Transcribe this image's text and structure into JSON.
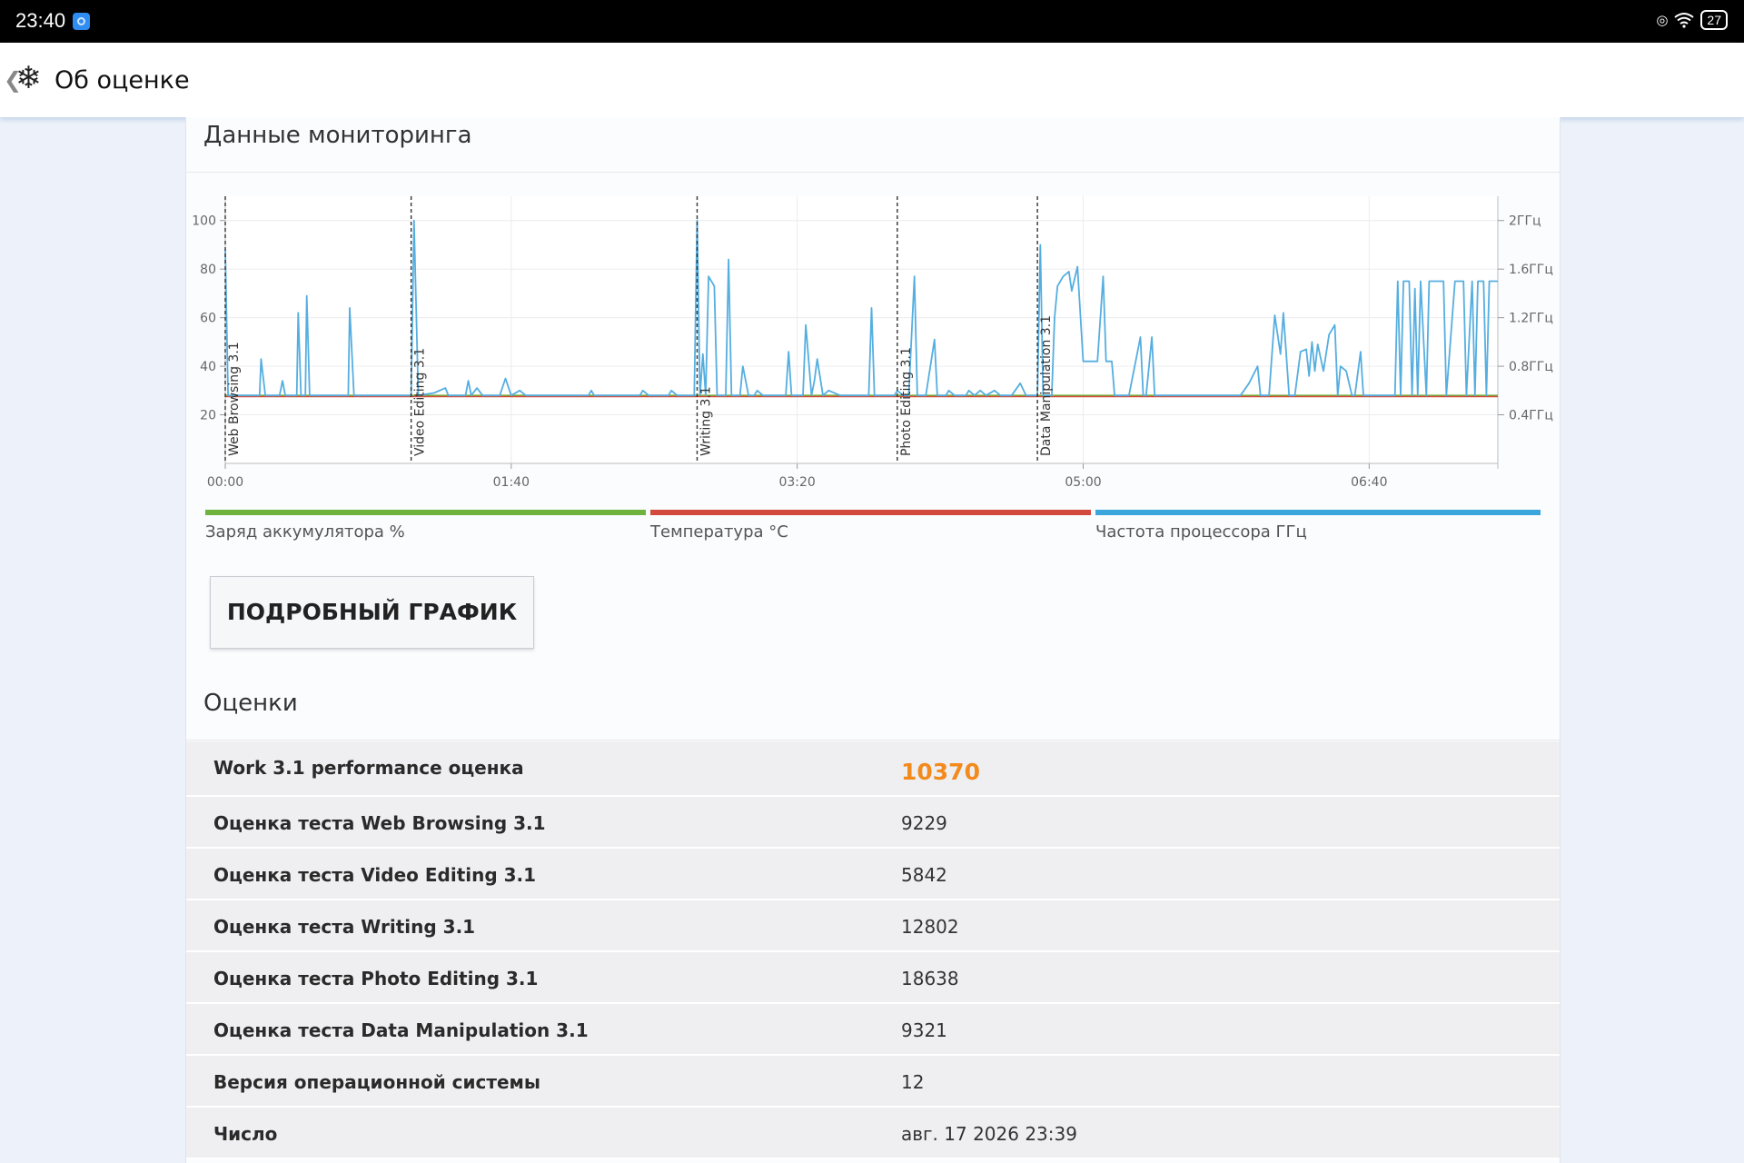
{
  "status_bar": {
    "time": "23:40",
    "battery": "27"
  },
  "app_bar": {
    "back_symbol": "❮",
    "icon": "snowflake-icon",
    "title": "Об оценке"
  },
  "monitoring": {
    "title": "Данные мониторинга"
  },
  "chart_data": {
    "type": "line",
    "x_ticks": [
      "00:00",
      "01:40",
      "03:20",
      "05:00",
      "06:40"
    ],
    "x_range_seconds": [
      0,
      445
    ],
    "y_left_ticks": [
      20,
      40,
      60,
      80,
      100
    ],
    "y_left_range": [
      0,
      110
    ],
    "y_right_ticks": [
      "0.4ГГц",
      "0.8ГГц",
      "1.2ГГц",
      "1.6ГГц",
      "2ГГц"
    ],
    "y_right_range_ghz": [
      0.0,
      2.2
    ],
    "test_markers": [
      {
        "label": "Web Browsing 3.1",
        "t": 0
      },
      {
        "label": "Video Editing 3.1",
        "t": 65
      },
      {
        "label": "Writing 3.1",
        "t": 165
      },
      {
        "label": "Photo Editing 3.1",
        "t": 235
      },
      {
        "label": "Data Manipulation 3.1",
        "t": 284
      }
    ],
    "series": [
      {
        "name": "Заряд аккумулятора %",
        "color": "#6fb23f",
        "values_t": [
          0,
          445
        ],
        "values_y": [
          28,
          28
        ]
      },
      {
        "name": "Температура °C",
        "color": "#d24a3c",
        "values_t": [
          0,
          445
        ],
        "values_y": [
          27.5,
          27.5
        ]
      },
      {
        "name": "Частота процессора ГГц",
        "color": "#55aee0",
        "unit": "percent-scale",
        "points": [
          [
            0,
            88
          ],
          [
            1,
            28
          ],
          [
            12,
            28
          ],
          [
            12.5,
            43
          ],
          [
            14,
            28
          ],
          [
            19,
            28
          ],
          [
            20,
            34
          ],
          [
            21,
            28
          ],
          [
            25,
            28
          ],
          [
            25.5,
            62
          ],
          [
            26.5,
            28
          ],
          [
            28,
            28
          ],
          [
            28.5,
            69
          ],
          [
            29.5,
            28
          ],
          [
            43,
            28
          ],
          [
            43.5,
            64
          ],
          [
            45,
            28
          ],
          [
            65,
            28
          ],
          [
            66,
            100
          ],
          [
            67.5,
            28
          ],
          [
            73,
            29
          ],
          [
            77,
            31
          ],
          [
            78,
            28
          ],
          [
            84,
            28
          ],
          [
            85,
            34
          ],
          [
            86,
            28
          ],
          [
            88,
            31
          ],
          [
            90,
            28
          ],
          [
            96,
            28
          ],
          [
            98,
            35
          ],
          [
            100,
            28
          ],
          [
            103,
            30
          ],
          [
            105,
            28
          ],
          [
            127,
            28
          ],
          [
            128,
            30
          ],
          [
            129,
            28
          ],
          [
            145,
            28
          ],
          [
            146,
            30
          ],
          [
            148,
            28
          ],
          [
            155,
            28
          ],
          [
            156,
            30
          ],
          [
            158,
            28
          ],
          [
            164,
            28
          ],
          [
            165,
            100
          ],
          [
            166,
            28
          ],
          [
            167,
            45
          ],
          [
            168,
            28
          ],
          [
            169,
            77
          ],
          [
            171,
            73
          ],
          [
            172,
            28
          ],
          [
            175,
            28
          ],
          [
            176,
            84
          ],
          [
            177,
            28
          ],
          [
            180,
            28
          ],
          [
            181,
            40
          ],
          [
            183,
            28
          ],
          [
            185,
            28
          ],
          [
            186,
            30
          ],
          [
            188,
            28
          ],
          [
            196,
            28
          ],
          [
            197,
            46
          ],
          [
            198,
            28
          ],
          [
            202,
            28
          ],
          [
            203,
            57
          ],
          [
            205,
            28
          ],
          [
            206,
            34
          ],
          [
            207,
            43
          ],
          [
            209,
            28
          ],
          [
            211,
            30
          ],
          [
            215,
            28
          ],
          [
            225,
            28
          ],
          [
            226,
            64
          ],
          [
            227,
            28
          ],
          [
            234,
            28
          ],
          [
            235,
            30
          ],
          [
            237,
            28
          ],
          [
            239,
            28
          ],
          [
            241,
            77
          ],
          [
            242,
            28
          ],
          [
            245,
            28
          ],
          [
            248,
            51
          ],
          [
            249,
            28
          ],
          [
            252,
            28
          ],
          [
            253,
            30
          ],
          [
            255,
            28
          ],
          [
            259,
            28
          ],
          [
            260,
            30
          ],
          [
            262,
            28
          ],
          [
            264,
            30
          ],
          [
            266,
            28
          ],
          [
            269,
            30
          ],
          [
            271,
            28
          ],
          [
            275,
            28
          ],
          [
            278,
            33
          ],
          [
            280,
            28
          ],
          [
            284,
            28
          ],
          [
            285,
            90
          ],
          [
            286,
            28
          ],
          [
            289,
            28
          ],
          [
            290,
            60
          ],
          [
            291,
            73
          ],
          [
            293,
            77
          ],
          [
            295,
            79
          ],
          [
            296,
            71
          ],
          [
            298,
            81
          ],
          [
            300,
            42
          ],
          [
            305,
            42
          ],
          [
            307,
            77
          ],
          [
            308,
            42
          ],
          [
            310,
            42
          ],
          [
            311,
            28
          ],
          [
            316,
            28
          ],
          [
            320,
            52
          ],
          [
            321,
            28
          ],
          [
            322,
            28
          ],
          [
            324,
            52
          ],
          [
            325,
            28
          ],
          [
            355,
            28
          ],
          [
            358,
            33
          ],
          [
            361,
            40
          ],
          [
            362,
            28
          ],
          [
            365,
            28
          ],
          [
            367,
            61
          ],
          [
            369,
            45
          ],
          [
            370,
            62
          ],
          [
            372,
            28
          ],
          [
            374,
            28
          ],
          [
            376,
            46
          ],
          [
            378,
            47
          ],
          [
            379,
            36
          ],
          [
            380,
            50
          ],
          [
            381,
            38
          ],
          [
            382,
            49
          ],
          [
            384,
            38
          ],
          [
            386,
            53
          ],
          [
            388,
            57
          ],
          [
            389,
            28
          ],
          [
            390,
            40
          ],
          [
            392,
            38
          ],
          [
            394,
            28
          ],
          [
            395,
            28
          ],
          [
            397,
            46
          ],
          [
            398,
            28
          ],
          [
            409,
            28
          ],
          [
            410,
            75
          ],
          [
            411,
            28
          ],
          [
            412,
            75
          ],
          [
            414,
            75
          ],
          [
            415,
            28
          ],
          [
            416,
            72
          ],
          [
            417,
            28
          ],
          [
            418,
            75
          ],
          [
            420,
            28
          ],
          [
            421,
            75
          ],
          [
            426,
            75
          ],
          [
            427,
            28
          ],
          [
            430,
            75
          ],
          [
            433,
            75
          ],
          [
            434,
            28
          ],
          [
            436,
            75
          ],
          [
            437,
            28
          ],
          [
            438,
            75
          ],
          [
            440,
            75
          ],
          [
            441,
            28
          ],
          [
            442,
            75
          ],
          [
            445,
            75
          ]
        ]
      }
    ]
  },
  "legend": [
    {
      "label": "Заряд аккумулятора %",
      "color": "#6fb23f"
    },
    {
      "label": "Температура °C",
      "color": "#d24a3c"
    },
    {
      "label": "Частота процессора ГГц",
      "color": "#3aa6dc"
    }
  ],
  "detail_button": "ПОДРОБНЫЙ ГРАФИК",
  "scores": {
    "title": "Оценки",
    "rows": [
      {
        "label": "Work 3.1 performance оценка",
        "value": "10370"
      },
      {
        "label": "Оценка теста Web Browsing 3.1",
        "value": "9229"
      },
      {
        "label": "Оценка теста Video Editing 3.1",
        "value": "5842"
      },
      {
        "label": "Оценка теста Writing 3.1",
        "value": "12802"
      },
      {
        "label": "Оценка теста Photo Editing 3.1",
        "value": "18638"
      },
      {
        "label": "Оценка теста Data Manipulation 3.1",
        "value": "9321"
      },
      {
        "label": "Версия операционной системы",
        "value": "12"
      },
      {
        "label": "Число",
        "value": "авг. 17 2026 23:39"
      }
    ]
  }
}
